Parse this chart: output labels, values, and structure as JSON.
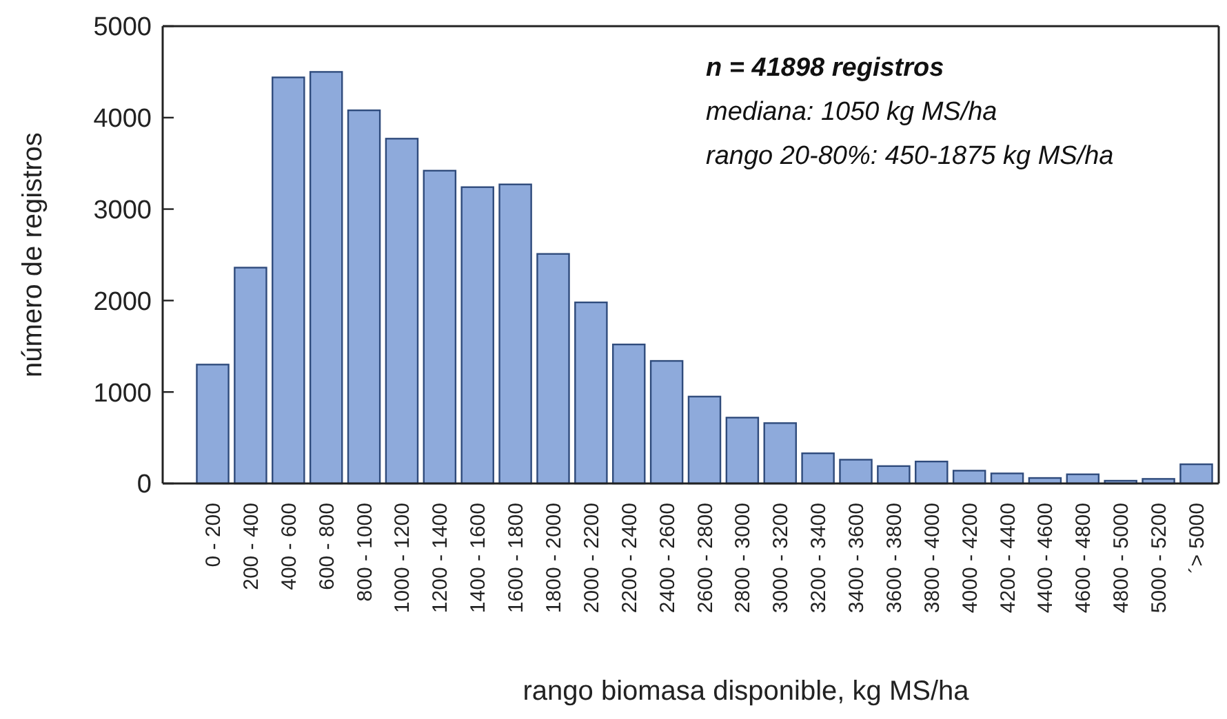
{
  "chart_data": {
    "type": "bar",
    "xlabel": "rango biomasa disponible, kg MS/ha",
    "ylabel": "número de registros",
    "categories": [
      "0 - 200",
      "200 - 400",
      "400 - 600",
      "600 - 800",
      "800 - 1000",
      "1000 - 1200",
      "1200 - 1400",
      "1400 - 1600",
      "1600 - 1800",
      "1800 - 2000",
      "2000 - 2200",
      "2200 - 2400",
      "2400 - 2600",
      "2600 - 2800",
      "2800 - 3000",
      "3000 - 3200",
      "3200 - 3400",
      "3400 - 3600",
      "3600 - 3800",
      "3800 - 4000",
      "4000 - 4200",
      "4200 - 4400",
      "4400 - 4600",
      "4600 - 4800",
      "4800 - 5000",
      "5000 - 5200",
      "´> 5000"
    ],
    "values": [
      1300,
      2360,
      4440,
      4500,
      4080,
      3770,
      3420,
      3240,
      3270,
      2510,
      1980,
      1520,
      1340,
      950,
      720,
      660,
      330,
      260,
      190,
      240,
      140,
      110,
      60,
      100,
      30,
      50,
      210
    ],
    "color": "#8eaadb",
    "ylim": [
      0,
      5000
    ],
    "yticks": [
      0,
      1000,
      2000,
      3000,
      4000,
      5000
    ],
    "grid": false,
    "annotations": [
      "n = 41898 registros",
      "mediana: 1050 kg MS/ha",
      "rango 20-80%: 450-1875 kg MS/ha"
    ]
  }
}
